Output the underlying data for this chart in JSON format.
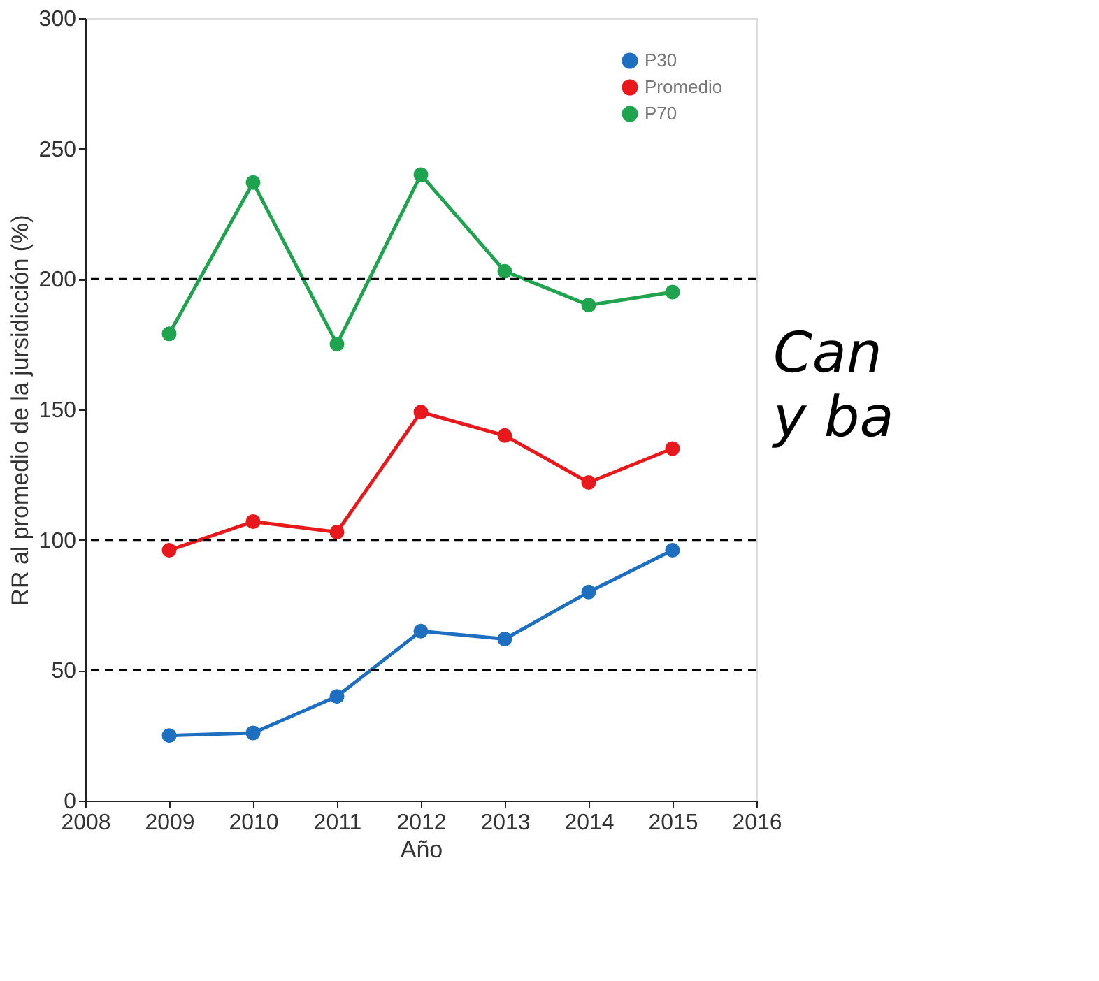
{
  "chart_data": {
    "type": "line",
    "xlabel": "Año",
    "ylabel": "RR al promedio de la jursidicción (%)",
    "x": [
      2009,
      2010,
      2011,
      2012,
      2013,
      2014,
      2015
    ],
    "series": [
      {
        "name": "P30",
        "color": "#1f6fc1",
        "values": [
          25,
          26,
          40,
          65,
          62,
          80,
          96
        ]
      },
      {
        "name": "Promedio",
        "color": "#e8191c",
        "values": [
          96,
          107,
          103,
          149,
          140,
          122,
          135
        ]
      },
      {
        "name": "P70",
        "color": "#1fa34f",
        "values": [
          179,
          237,
          175,
          240,
          203,
          190,
          195
        ]
      }
    ],
    "xlim": [
      2008,
      2016
    ],
    "xticks": [
      2008,
      2009,
      2010,
      2011,
      2012,
      2013,
      2014,
      2015,
      2016
    ],
    "ylim": [
      0,
      300
    ],
    "yticks": [
      0,
      50,
      100,
      150,
      200,
      250,
      300
    ],
    "ref_lines": [
      {
        "axis": "y",
        "value": 50,
        "color": "#000000",
        "line_style": "dashed"
      },
      {
        "axis": "y",
        "value": 100,
        "color": "#000000",
        "line_style": "dashed"
      },
      {
        "axis": "y",
        "value": 200,
        "color": "#000000",
        "line_style": "dashed"
      }
    ],
    "annotations": [
      "Can",
      "y ba"
    ],
    "legend": "top right",
    "marker": "circle",
    "line_style": "solid",
    "grid": false
  }
}
